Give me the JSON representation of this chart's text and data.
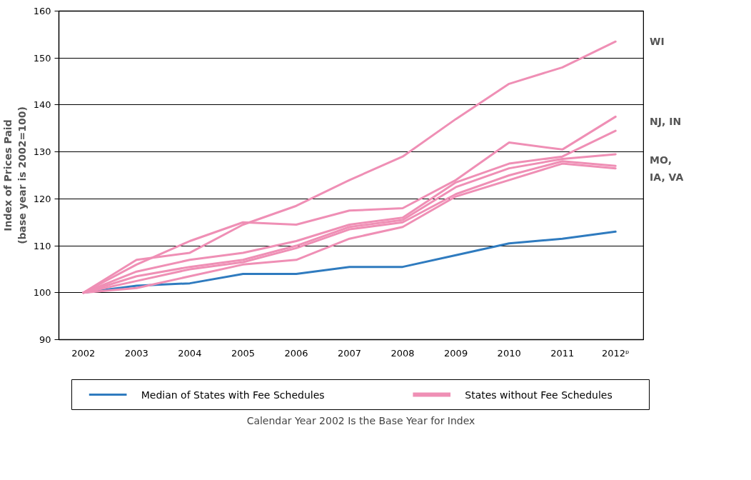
{
  "chart_data": {
    "type": "line",
    "categories": [
      "2002",
      "2003",
      "2004",
      "2005",
      "2006",
      "2007",
      "2008",
      "2009",
      "2010",
      "2011",
      "2012ᵖ"
    ],
    "ylabel": "Index of Prices Paid\n(base year is 2002=100)",
    "ylim": [
      90,
      160
    ],
    "yticks": [
      90,
      100,
      110,
      120,
      130,
      140,
      150,
      160
    ],
    "grid": "y",
    "legend": "bottom",
    "marker": "none",
    "line_style": "solid",
    "series": [
      {
        "name": "Median of States with Fee Schedules",
        "color": "#2f7bbf",
        "values": [
          100,
          101.5,
          102,
          104,
          104,
          105.5,
          105.5,
          108,
          110.5,
          111.5,
          113
        ]
      },
      {
        "name": "States without Fee Schedules",
        "color": "#ef8fb5",
        "values": [
          100,
          107,
          108.5,
          114.5,
          118.5,
          124,
          129,
          137,
          144.5,
          148,
          153.5
        ]
      },
      {
        "color": "#ef8fb5",
        "values": [
          100,
          106,
          111,
          115,
          114.5,
          117.5,
          118,
          124,
          132,
          130.5,
          137.5
        ]
      },
      {
        "color": "#ef8fb5",
        "values": [
          100,
          104.5,
          107,
          108.5,
          111,
          114.5,
          116,
          123.5,
          127.5,
          129,
          134.5
        ]
      },
      {
        "color": "#ef8fb5",
        "values": [
          100,
          103.5,
          105.5,
          107,
          110,
          114,
          115.5,
          122.5,
          126.5,
          128.5,
          129.5
        ]
      },
      {
        "color": "#ef8fb5",
        "values": [
          100,
          102.5,
          105,
          106.5,
          109.5,
          113.5,
          115,
          121,
          125,
          128,
          127
        ]
      },
      {
        "color": "#ef8fb5",
        "values": [
          100,
          101,
          103.5,
          106,
          107,
          111.5,
          114,
          120.5,
          124,
          127.5,
          126.5
        ]
      }
    ],
    "annotations": [
      "WI",
      "NJ, IN",
      "MO,\nIA, VA",
      "Calendar Year 2002 Is the Base Year for Index"
    ]
  }
}
